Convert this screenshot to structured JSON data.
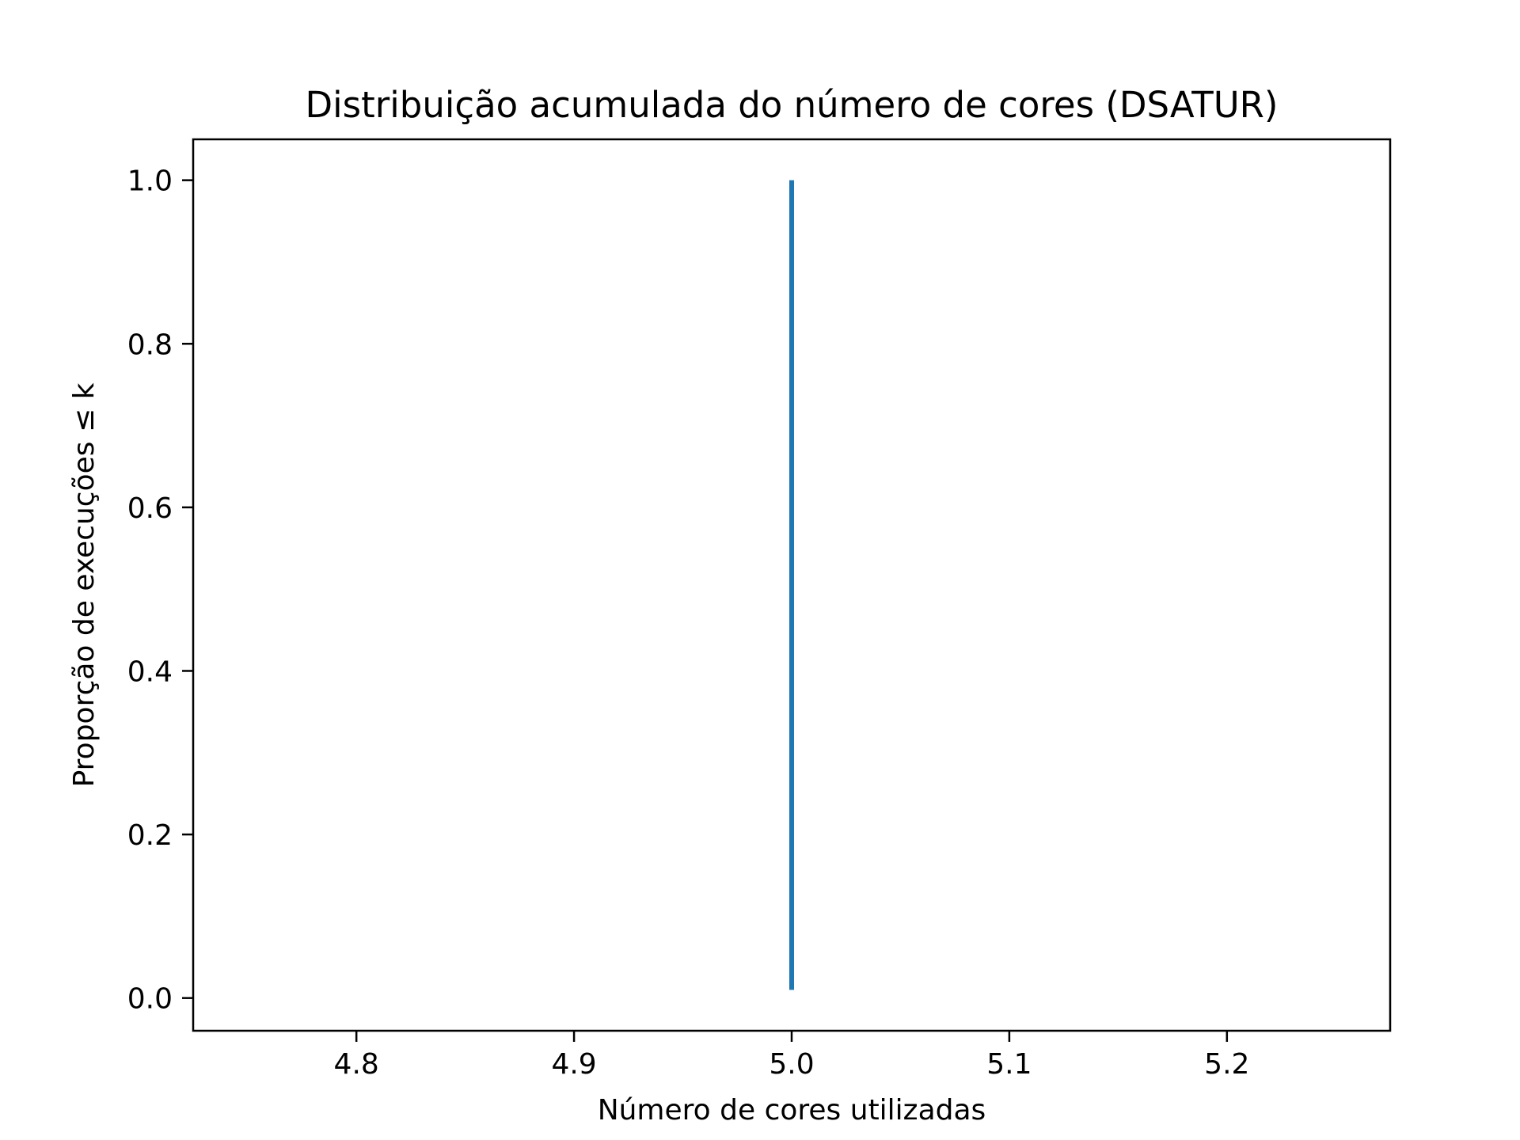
{
  "chart_data": {
    "type": "line",
    "title": "Distribuição acumulada do número de cores (DSATUR)",
    "xlabel": "Número de cores utilizadas",
    "ylabel": "Proporção de execuções ≤ k",
    "xlim": [
      4.725,
      5.275
    ],
    "ylim": [
      -0.04,
      1.05
    ],
    "xticks": [
      4.8,
      4.9,
      5.0,
      5.1,
      5.2
    ],
    "xtick_labels": [
      "4.8",
      "4.9",
      "5.0",
      "5.1",
      "5.2"
    ],
    "yticks": [
      0.0,
      0.2,
      0.4,
      0.6,
      0.8,
      1.0
    ],
    "ytick_labels": [
      "0.0",
      "0.2",
      "0.4",
      "0.6",
      "0.8",
      "1.0"
    ],
    "grid": false,
    "series": [
      {
        "color": "#1f77b4",
        "x": [
          5.0,
          5.0
        ],
        "y": [
          0.01,
          1.0
        ]
      }
    ]
  }
}
